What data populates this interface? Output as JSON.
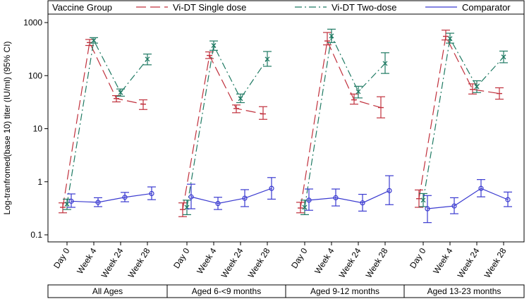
{
  "chart_data": {
    "type": "line",
    "ylabel": "Log-tranfromed(base 10) titer (IU/ml) (95% CI)",
    "yscale": "log10",
    "ylim": [
      0.1,
      1000
    ],
    "y_ticks": [
      0.1,
      1,
      10,
      100,
      1000
    ],
    "y_tick_labels": [
      "0.1",
      "1",
      "10",
      "100",
      "1000"
    ],
    "grid": false,
    "legend": {
      "title": "Vaccine Group",
      "position": "top",
      "entries": [
        "Vi-DT Single dose",
        "Vi-DT Two-dose",
        "Comparator"
      ]
    },
    "timepoints": [
      "Day 0",
      "Week 4",
      "Week 24",
      "Week 28"
    ],
    "panels": [
      "All Ages",
      "Aged 6-<9 months",
      "Aged 9-12 months",
      "Aged 13-23 months"
    ],
    "series": [
      {
        "name": "Vi-DT Single dose",
        "color": "#c0303c",
        "dash": "dashed",
        "marker": "bar",
        "values": [
          [
            0.33,
            420,
            37,
            29
          ],
          [
            0.3,
            240,
            24,
            19
          ],
          [
            0.32,
            450,
            35,
            25
          ],
          [
            0.48,
            550,
            55,
            46
          ]
        ],
        "ci_low": [
          [
            0.26,
            370,
            32,
            23
          ],
          [
            0.22,
            210,
            20,
            15
          ],
          [
            0.26,
            380,
            29,
            16
          ],
          [
            0.33,
            470,
            45,
            36
          ]
        ],
        "ci_high": [
          [
            0.4,
            480,
            42,
            35
          ],
          [
            0.4,
            280,
            28,
            26
          ],
          [
            0.41,
            650,
            45,
            40
          ],
          [
            0.7,
            720,
            70,
            59
          ]
        ]
      },
      {
        "name": "Vi-DT Two-dose",
        "color": "#1f7a63",
        "dash": "dashdot",
        "marker": "x",
        "values": [
          [
            0.38,
            460,
            48,
            205
          ],
          [
            0.33,
            370,
            37,
            205
          ],
          [
            0.33,
            560,
            50,
            170
          ],
          [
            0.45,
            500,
            62,
            225
          ]
        ],
        "ci_low": [
          [
            0.3,
            410,
            41,
            160
          ],
          [
            0.24,
            300,
            31,
            150
          ],
          [
            0.24,
            420,
            38,
            110
          ],
          [
            0.34,
            410,
            48,
            175
          ]
        ],
        "ci_high": [
          [
            0.47,
            520,
            56,
            255
          ],
          [
            0.45,
            450,
            45,
            285
          ],
          [
            0.45,
            750,
            63,
            270
          ],
          [
            0.6,
            630,
            80,
            290
          ]
        ]
      },
      {
        "name": "Comparator",
        "color": "#3a3ad0",
        "dash": "solid",
        "marker": "circle",
        "values": [
          [
            0.43,
            0.41,
            0.51,
            0.6
          ],
          [
            0.52,
            0.39,
            0.49,
            0.75
          ],
          [
            0.45,
            0.5,
            0.4,
            0.68
          ],
          [
            0.31,
            0.35,
            0.75,
            0.46
          ]
        ],
        "ci_low": [
          [
            0.33,
            0.34,
            0.42,
            0.46
          ],
          [
            0.31,
            0.3,
            0.34,
            0.47
          ],
          [
            0.29,
            0.35,
            0.28,
            0.37
          ],
          [
            0.17,
            0.25,
            0.52,
            0.34
          ]
        ],
        "ci_high": [
          [
            0.59,
            0.5,
            0.63,
            0.8
          ],
          [
            0.9,
            0.51,
            0.71,
            1.2
          ],
          [
            0.73,
            0.73,
            0.58,
            1.3
          ],
          [
            0.55,
            0.5,
            1.1,
            0.64
          ]
        ]
      }
    ]
  }
}
